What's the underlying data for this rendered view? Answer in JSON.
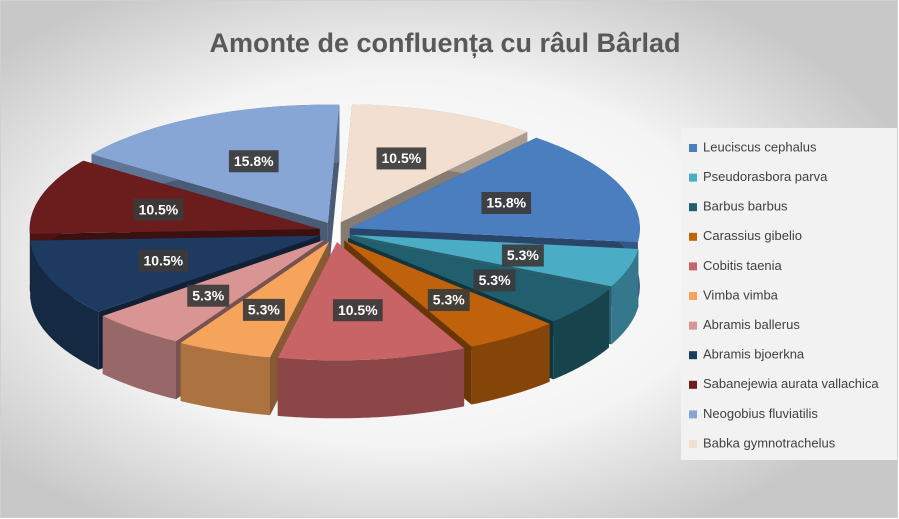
{
  "chart_data": {
    "type": "pie3d",
    "title": "Amonte de confluența cu râul Bârlad",
    "categories": [
      "Leuciscus cephalus",
      "Pseudorasbora parva",
      "Barbus barbus",
      "Carassius gibelio",
      "Cobitis taenia",
      "Vimba vimba",
      "Abramis ballerus",
      "Abramis bjoerkna",
      "Sabanejewia aurata vallachica",
      "Neogobius fluviatilis",
      "Babka gymnotrachelus"
    ],
    "values": [
      15.8,
      5.3,
      5.3,
      5.3,
      10.5,
      5.3,
      5.3,
      10.5,
      10.5,
      15.8,
      10.5
    ],
    "value_labels": [
      "15.8%",
      "5.3%",
      "5.3%",
      "5.3%",
      "10.5%",
      "5.3%",
      "5.3%",
      "10.5%",
      "10.5%",
      "15.8%",
      "10.5%"
    ],
    "colors": [
      "#4a7ebf",
      "#4bacc6",
      "#215f6e",
      "#c0620c",
      "#c86466",
      "#f6a45c",
      "#d99594",
      "#1f3a60",
      "#6b1d1d",
      "#87a6d6",
      "#f2dfcf"
    ],
    "legend": "right"
  }
}
